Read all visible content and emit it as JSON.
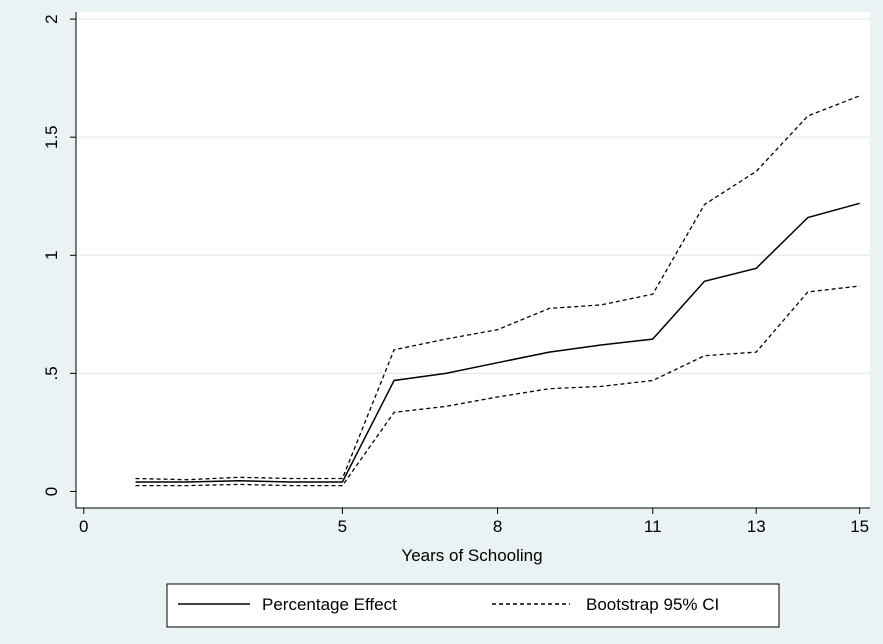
{
  "chart_data": {
    "type": "line",
    "title": "",
    "xlabel": "Years of Schooling",
    "ylabel": "",
    "xlim": [
      -0.15,
      15.2
    ],
    "ylim": [
      -0.07,
      2.03
    ],
    "xticks": [
      0,
      5,
      8,
      11,
      13,
      15
    ],
    "xtick_labels": [
      "0",
      "5",
      "8",
      "11",
      "13",
      "15"
    ],
    "yticks": [
      0,
      0.5,
      1,
      1.5,
      2
    ],
    "ytick_labels": [
      "0",
      ".5",
      "1",
      "1.5",
      "2"
    ],
    "grid": "horizontal",
    "legend_position": "bottom",
    "series": [
      {
        "name": "Percentage Effect",
        "style": "solid",
        "x": [
          1,
          2,
          3,
          4,
          5,
          6,
          7,
          8,
          9,
          10,
          11,
          12,
          13,
          14,
          15
        ],
        "y": [
          0.04,
          0.04,
          0.045,
          0.04,
          0.04,
          0.47,
          0.5,
          0.545,
          0.59,
          0.62,
          0.645,
          0.89,
          0.945,
          1.16,
          1.22
        ]
      },
      {
        "name": "Bootstrap 95% CI",
        "style": "dashed",
        "x": [
          1,
          2,
          3,
          4,
          5,
          6,
          7,
          8,
          9,
          10,
          11,
          12,
          13,
          14,
          15
        ],
        "y": [
          0.055,
          0.05,
          0.06,
          0.055,
          0.055,
          0.6,
          0.645,
          0.685,
          0.775,
          0.79,
          0.835,
          1.215,
          1.355,
          1.59,
          1.675
        ]
      },
      {
        "name": "",
        "style": "dashed",
        "x": [
          1,
          2,
          3,
          4,
          5,
          6,
          7,
          8,
          9,
          10,
          11,
          12,
          13,
          14,
          15
        ],
        "y": [
          0.025,
          0.025,
          0.03,
          0.025,
          0.025,
          0.335,
          0.36,
          0.4,
          0.435,
          0.445,
          0.47,
          0.575,
          0.59,
          0.845,
          0.87
        ]
      }
    ],
    "legend": [
      {
        "label": "Percentage Effect",
        "style": "solid"
      },
      {
        "label": "Bootstrap 95% CI",
        "style": "dashed"
      }
    ]
  }
}
